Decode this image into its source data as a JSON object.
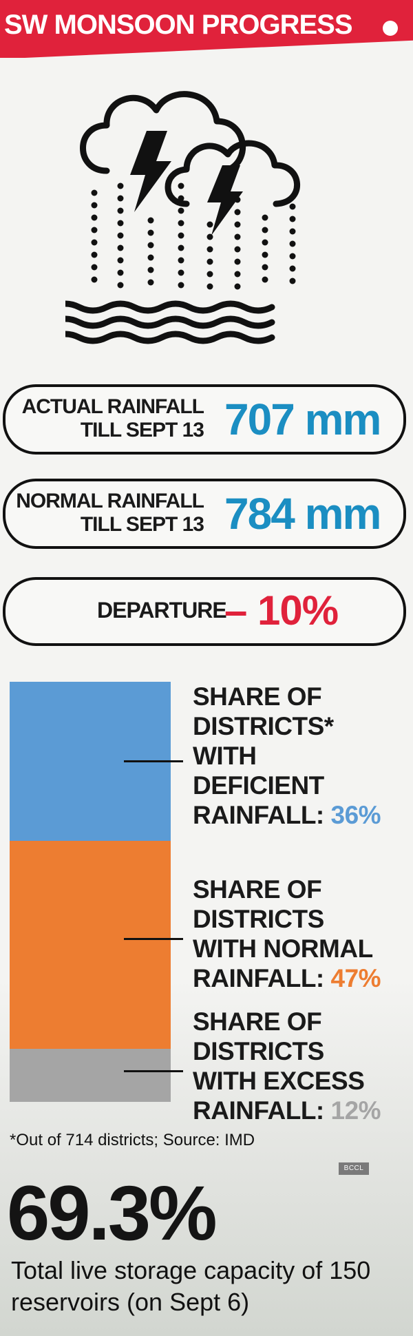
{
  "header": {
    "title": "SW MONSOON PROGRESS"
  },
  "rainfall": {
    "actual_label_line1": "ACTUAL RAINFALL",
    "actual_label_line2": "TILL SEPT 13",
    "actual_value": "707 mm",
    "normal_label_line1": "NORMAL RAINFALL",
    "normal_label_line2": "TILL SEPT 13",
    "normal_value": "784 mm",
    "departure_label": "DEPARTURE",
    "departure_value": "– 10%"
  },
  "colors": {
    "header": "#e0223b",
    "value_blue": "#1b8ec2",
    "departure_red": "#e0223b",
    "deficient": "#5b9bd5",
    "normal": "#ed7d31",
    "excess": "#a5a5a5"
  },
  "icons": [
    "storm-cloud-icon",
    "lightning-icon",
    "rain-icon",
    "water-waves-icon"
  ],
  "chart_data": {
    "type": "bar",
    "stacked": true,
    "orientation": "vertical",
    "categories": [
      "Deficient",
      "Normal",
      "Excess"
    ],
    "series": [
      {
        "values": [
          36,
          47,
          12
        ]
      }
    ],
    "labels": [
      {
        "lines": [
          "SHARE OF",
          "DISTRICTS*",
          "WITH",
          "DEFICIENT",
          "RAINFALL: "
        ],
        "pct": "36%"
      },
      {
        "lines": [
          "SHARE OF",
          "DISTRICTS",
          "WITH NORMAL",
          "RAINFALL: "
        ],
        "pct": "47%"
      },
      {
        "lines": [
          "SHARE OF",
          "DISTRICTS",
          "WITH EXCESS",
          "RAINFALL: "
        ],
        "pct": "12%"
      }
    ],
    "colors": [
      "#5b9bd5",
      "#ed7d31",
      "#a5a5a5"
    ]
  },
  "footnote": "*Out of 714 districts; Source: IMD",
  "watermark": "BCCL",
  "storage": {
    "value": "69.3%",
    "description": "Total live storage capacity of 150 reservoirs (on Sept 6)"
  }
}
